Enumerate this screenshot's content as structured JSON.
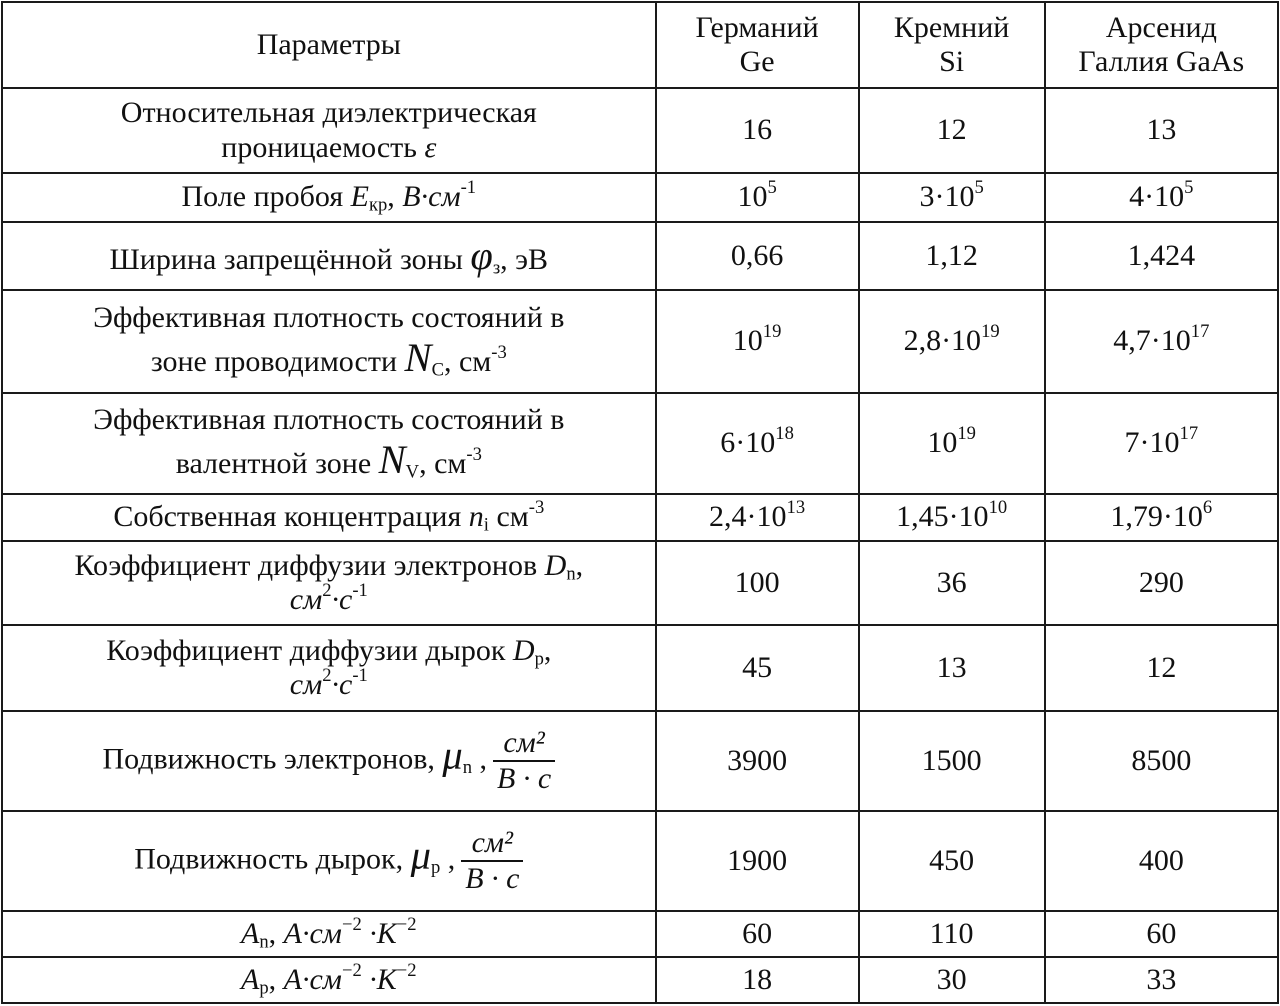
{
  "header": [
    "Параметры",
    "Германий Ge",
    "Кремний Si",
    "Арсенид Галлия GaAs"
  ],
  "header_lines": [
    [
      "Параметры"
    ],
    [
      "Германий",
      "Ge"
    ],
    [
      "Кремний",
      "Si"
    ],
    [
      "Арсенид",
      "Галлия GaAs"
    ]
  ],
  "rows": [
    {
      "param": [
        "Относительная диэлектрическая",
        {
          "br": true
        },
        "проницаемость ",
        {
          "i": "ε"
        }
      ],
      "values": [
        [
          "16"
        ],
        [
          "12"
        ],
        [
          "13"
        ]
      ]
    },
    {
      "param": [
        "Поле пробоя ",
        {
          "i": "E"
        },
        {
          "sub": "кр"
        },
        ", ",
        {
          "i": "В·см"
        },
        {
          "sup": "-1"
        }
      ],
      "values": [
        [
          "10",
          {
            "sup": "5"
          }
        ],
        [
          "3·10",
          {
            "sup": "5"
          }
        ],
        [
          "4·10",
          {
            "sup": "5"
          }
        ]
      ]
    },
    {
      "param": [
        "Ширина запрещённой зоны ",
        {
          "big": "φ"
        },
        {
          "sub": "з"
        },
        ", эВ"
      ],
      "values": [
        [
          "0,66"
        ],
        [
          "1,12"
        ],
        [
          "1,424"
        ]
      ]
    },
    {
      "param": [
        "Эффективная плотность состояний в",
        {
          "br": true
        },
        "зоне проводимости ",
        {
          "big": "N"
        },
        {
          "sub": "C"
        },
        ", см",
        {
          "sup": "-3"
        }
      ],
      "values": [
        [
          "10",
          {
            "sup": "19"
          }
        ],
        [
          "2,8·10",
          {
            "sup": "19"
          }
        ],
        [
          "4,7·10",
          {
            "sup": "17"
          }
        ]
      ]
    },
    {
      "param": [
        "Эффективная плотность состояний в",
        {
          "br": true
        },
        "валентной зоне ",
        {
          "big": "N"
        },
        {
          "sub": "V"
        },
        ", см",
        {
          "sup": "-3"
        }
      ],
      "values": [
        [
          "6·10",
          {
            "sup": "18"
          }
        ],
        [
          "10",
          {
            "sup": "19"
          }
        ],
        [
          "7·10",
          {
            "sup": "17"
          }
        ]
      ]
    },
    {
      "param": [
        "Собственная концентрация ",
        {
          "i": "n"
        },
        {
          "sub": "i"
        },
        " см",
        {
          "sup": "-3"
        }
      ],
      "values": [
        [
          "2,4·10",
          {
            "sup": "13"
          }
        ],
        [
          "1,45·10",
          {
            "sup": "10"
          }
        ],
        [
          "1,79·10",
          {
            "sup": "6"
          }
        ]
      ]
    },
    {
      "param": [
        "Коэффициент диффузии электронов ",
        {
          "i": "D"
        },
        {
          "sub": "n"
        },
        ",",
        {
          "br": true
        },
        {
          "i": "см"
        },
        {
          "sup": "2"
        },
        {
          "i": "·с"
        },
        {
          "sup": "-1"
        }
      ],
      "values": [
        [
          "100"
        ],
        [
          "36"
        ],
        [
          "290"
        ]
      ]
    },
    {
      "param": [
        "Коэффициент диффузии дырок ",
        {
          "i": "D"
        },
        {
          "sub": "p"
        },
        ",",
        {
          "br": true
        },
        {
          "i": "см"
        },
        {
          "sup": "2"
        },
        {
          "i": "·с"
        },
        {
          "sup": "-1"
        }
      ],
      "values": [
        [
          "45"
        ],
        [
          "13"
        ],
        [
          "12"
        ]
      ]
    },
    {
      "param": [
        "Подвижность электронов, ",
        {
          "big": "μ"
        },
        {
          "sub": "n"
        },
        " ,",
        {
          "frac": [
            "см²",
            "B · c"
          ]
        }
      ],
      "values": [
        [
          "3900"
        ],
        [
          "1500"
        ],
        [
          "8500"
        ]
      ]
    },
    {
      "param": [
        "Подвижность дырок, ",
        {
          "big": "μ"
        },
        {
          "sub": "p"
        },
        " ,",
        {
          "frac": [
            "см²",
            "B · c"
          ]
        }
      ],
      "values": [
        [
          "1900"
        ],
        [
          "450"
        ],
        [
          "400"
        ]
      ]
    },
    {
      "param": [
        {
          "i": "A"
        },
        {
          "sub": "n"
        },
        ", ",
        {
          "i": "A·см"
        },
        {
          "sup": "−2"
        },
        {
          "i": " ·K"
        },
        {
          "sup": "−2"
        }
      ],
      "values": [
        [
          "60"
        ],
        [
          "110"
        ],
        [
          "60"
        ]
      ]
    },
    {
      "param": [
        {
          "i": "A"
        },
        {
          "sub": "p"
        },
        ", ",
        {
          "i": "A·см"
        },
        {
          "sup": "−2"
        },
        {
          "i": " ·K"
        },
        {
          "sup": "−2"
        }
      ],
      "values": [
        [
          "18"
        ],
        [
          "30"
        ],
        [
          "33"
        ]
      ]
    }
  ]
}
